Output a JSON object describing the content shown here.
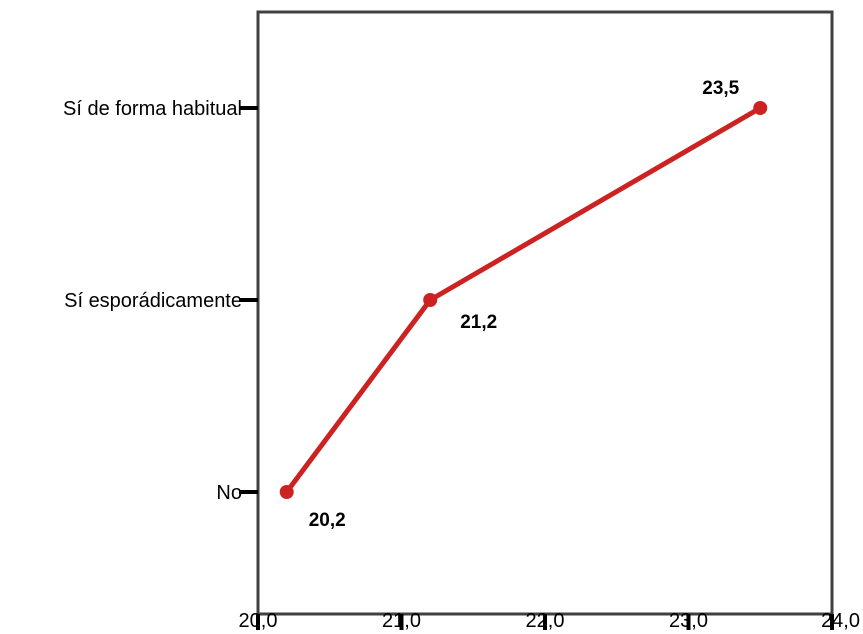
{
  "chart_data": {
    "type": "line",
    "title": "",
    "xlabel": "",
    "ylabel": "",
    "categories": [
      "No",
      "Sí esporádicamente",
      "Sí de forma habitual"
    ],
    "x_ticks": [
      "20,0",
      "21,0",
      "22,0",
      "23,0",
      "24,0"
    ],
    "xlim": [
      20.0,
      24.0
    ],
    "grid": false,
    "series": [
      {
        "values": [
          20.2,
          21.2,
          23.5
        ],
        "labels": [
          "20,2",
          "21,2",
          "23,5"
        ],
        "color": "#cc2222"
      }
    ]
  }
}
